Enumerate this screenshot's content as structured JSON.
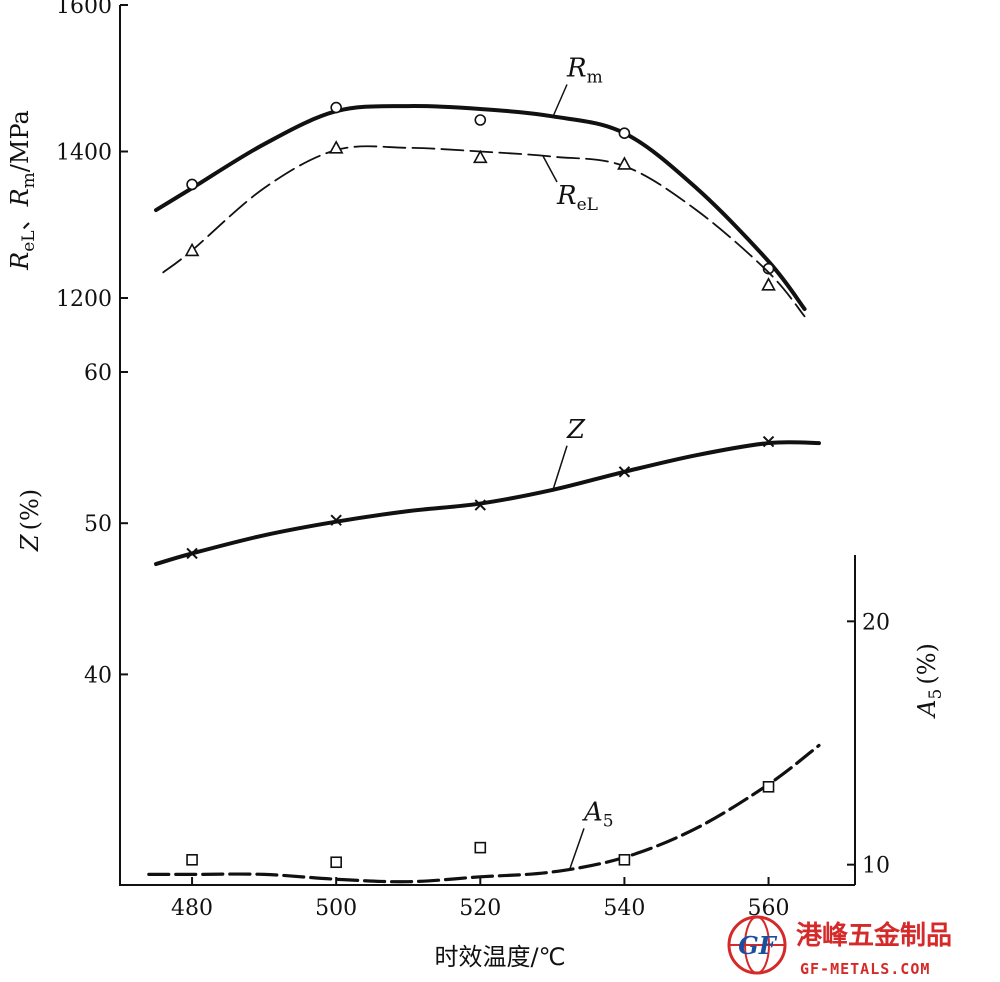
{
  "chart_data": {
    "type": "line",
    "xlabel": "时效温度/℃",
    "x_ticks": [
      480,
      500,
      520,
      540,
      560
    ],
    "xlim": [
      470,
      572
    ],
    "panels": {
      "strength": {
        "ylabel_parts": [
          "R",
          "eL",
          "、",
          "R",
          "m",
          "/MPa"
        ],
        "ylim": [
          1200,
          1600
        ],
        "y_ticks": [
          1200,
          1400,
          1600
        ],
        "series": [
          {
            "name": "Rm",
            "name_main": "R",
            "name_sub": "m",
            "style": "solid-thick",
            "marker": "circle",
            "points": [
              [
                480,
                1355
              ],
              [
                500,
                1460
              ],
              [
                520,
                1443
              ],
              [
                540,
                1425
              ],
              [
                560,
                1240
              ]
            ],
            "curve": [
              [
                475,
                1320
              ],
              [
                480,
                1350
              ],
              [
                490,
                1410
              ],
              [
                500,
                1455
              ],
              [
                510,
                1462
              ],
              [
                520,
                1458
              ],
              [
                530,
                1448
              ],
              [
                540,
                1425
              ],
              [
                550,
                1350
              ],
              [
                560,
                1250
              ],
              [
                565,
                1185
              ]
            ]
          },
          {
            "name": "ReL",
            "name_main": "R",
            "name_sub": "eL",
            "style": "dashed",
            "marker": "triangle",
            "points": [
              [
                480,
                1265
              ],
              [
                500,
                1405
              ],
              [
                520,
                1392
              ],
              [
                540,
                1383
              ],
              [
                560,
                1218
              ]
            ],
            "curve": [
              [
                476,
                1235
              ],
              [
                480,
                1265
              ],
              [
                490,
                1350
              ],
              [
                500,
                1402
              ],
              [
                510,
                1405
              ],
              [
                520,
                1400
              ],
              [
                530,
                1393
              ],
              [
                540,
                1380
              ],
              [
                550,
                1320
              ],
              [
                560,
                1235
              ],
              [
                565,
                1175
              ]
            ]
          }
        ]
      },
      "ductility": {
        "ylabel_main": "Z",
        "ylabel_unit": "(%)",
        "ylim": [
          35,
          60
        ],
        "y_ticks": [
          40,
          50,
          60
        ],
        "series": [
          {
            "name": "Z",
            "name_main": "Z",
            "name_sub": "",
            "style": "solid-thick",
            "marker": "x",
            "points": [
              [
                480,
                48
              ],
              [
                500,
                50.2
              ],
              [
                520,
                51.2
              ],
              [
                540,
                53.4
              ],
              [
                560,
                55.4
              ]
            ],
            "curve": [
              [
                475,
                47.3
              ],
              [
                480,
                48
              ],
              [
                490,
                49.2
              ],
              [
                500,
                50.1
              ],
              [
                510,
                50.8
              ],
              [
                520,
                51.3
              ],
              [
                530,
                52.2
              ],
              [
                540,
                53.4
              ],
              [
                550,
                54.5
              ],
              [
                560,
                55.3
              ],
              [
                567,
                55.3
              ]
            ]
          }
        ]
      },
      "elongation": {
        "ylabel_main": "A",
        "ylabel_sub": "5",
        "ylabel_unit": "(%)",
        "ylim": [
          0,
          30
        ],
        "y_ticks": [
          10,
          20
        ],
        "series": [
          {
            "name": "A5",
            "name_main": "A",
            "name_sub": "5",
            "style": "dashed-thick",
            "marker": "square",
            "points": [
              [
                480,
                10.2
              ],
              [
                500,
                10.1
              ],
              [
                520,
                10.7
              ],
              [
                540,
                10.2
              ],
              [
                560,
                13.2
              ]
            ],
            "curve": [
              [
                474,
                9.6
              ],
              [
                480,
                9.6
              ],
              [
                490,
                9.6
              ],
              [
                500,
                9.4
              ],
              [
                510,
                9.3
              ],
              [
                520,
                9.5
              ],
              [
                530,
                9.7
              ],
              [
                540,
                10.3
              ],
              [
                550,
                11.5
              ],
              [
                560,
                13.3
              ],
              [
                567,
                14.9
              ]
            ]
          }
        ]
      }
    }
  },
  "watermark": {
    "cn": "港峰五金制品",
    "en": "GF-METALS.COM",
    "logo": "GF",
    "color": "#d42a2a"
  }
}
